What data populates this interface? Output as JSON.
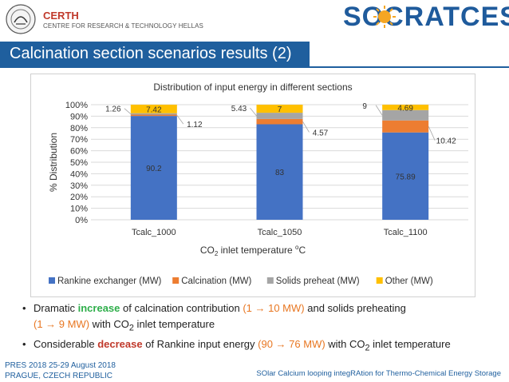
{
  "header": {
    "org_name": "CERTH",
    "org_subtitle": "CENTRE FOR RESEARCH & TECHNOLOGY HELLAS",
    "project_logo_text": "SOCRATCES"
  },
  "slide_title": "Calcination section scenarios results (2)",
  "chart_data": {
    "type": "bar",
    "stacked": true,
    "title": "Distribution of input energy in different sections",
    "xlabel_main": "CO",
    "xlabel_sub": "2",
    "xlabel_rest": " inlet temperature ",
    "xlabel_sup": "o",
    "xlabel_end": "C",
    "ylabel": "% Distribution",
    "ylim": [
      0,
      100
    ],
    "yticks": [
      "0%",
      "10%",
      "20%",
      "30%",
      "40%",
      "50%",
      "60%",
      "70%",
      "80%",
      "90%",
      "100%"
    ],
    "categories": [
      "Tcalc_1000",
      "Tcalc_1050",
      "Tcalc_1100"
    ],
    "series": [
      {
        "name": "Rankine exchanger (MW)",
        "color": "#4472c4",
        "values": [
          90.2,
          83,
          75.89
        ],
        "labels": [
          "90.2",
          "83",
          "75.89"
        ]
      },
      {
        "name": "Calcination (MW)",
        "color": "#ed7d31",
        "values": [
          1.12,
          4.57,
          10.42
        ],
        "labels": [
          "1.12",
          "4.57",
          "10.42"
        ]
      },
      {
        "name": "Solids preheat (MW)",
        "color": "#a5a5a5",
        "values": [
          1.26,
          5.43,
          9
        ],
        "labels": [
          "1.26",
          "5.43",
          "9"
        ]
      },
      {
        "name": "Other (MW)",
        "color": "#ffc000",
        "values": [
          7.42,
          7,
          4.69
        ],
        "labels": [
          "7.42",
          "7",
          "4.69"
        ]
      }
    ],
    "legend_position": "bottom",
    "grid": true
  },
  "bullets": {
    "b1_p1": "Dramatic ",
    "b1_hl": "increase",
    "b1_p2": " of calcination contribution ",
    "b1_range1": "(1 → 10 MW)",
    "b1_p3": " and solids preheating",
    "b1_range2": "(1 → 9 MW)",
    "b1_p4": " with CO",
    "b1_sub": "2",
    "b1_p5": " inlet temperature",
    "b2_p1": "Considerable ",
    "b2_hl": "decrease",
    "b2_p2": " of Rankine input energy ",
    "b2_range": "(90 → 76 MW)",
    "b2_p3": " with CO",
    "b2_sub": "2",
    "b2_p4": " inlet temperature",
    "marker": "•"
  },
  "footer": {
    "conf_line1": "PRES 2018 25-29 August 2018",
    "conf_line2": "PRAGUE, CZECH REPUBLIC",
    "project_full": "SOlar Calcium looping integRAtion for Thermo-Chemical Energy Storage"
  }
}
